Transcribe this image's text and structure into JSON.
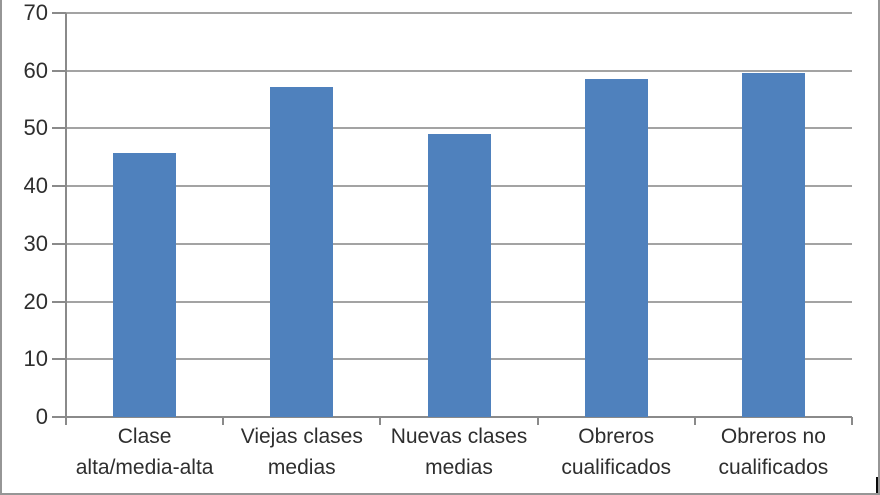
{
  "chart_data": {
    "type": "bar",
    "title": "",
    "xlabel": "",
    "ylabel": "",
    "categories": [
      "Clase alta/media-alta",
      "Viejas clases medias",
      "Nuevas clases medias",
      "Obreros cualificados",
      "Obreros no cualificados"
    ],
    "category_lines": [
      [
        "Clase",
        "alta/media-alta"
      ],
      [
        "Viejas clases",
        "medias"
      ],
      [
        "Nuevas clases",
        "medias"
      ],
      [
        "Obreros",
        "cualificados"
      ],
      [
        "Obreros no",
        "cualificados"
      ]
    ],
    "values": [
      45.8,
      57.2,
      49,
      58.6,
      59.6
    ],
    "ylim": [
      0,
      70
    ],
    "yticks": [
      0,
      10,
      20,
      30,
      40,
      50,
      60,
      70
    ],
    "grid": true,
    "legend": false,
    "bar_color": "#4f81bd",
    "gridline_color": "#a3a3a3",
    "axis_color": "#8a8a8a",
    "text_color": "#2e2e2e",
    "background_color": "#ffffff"
  }
}
